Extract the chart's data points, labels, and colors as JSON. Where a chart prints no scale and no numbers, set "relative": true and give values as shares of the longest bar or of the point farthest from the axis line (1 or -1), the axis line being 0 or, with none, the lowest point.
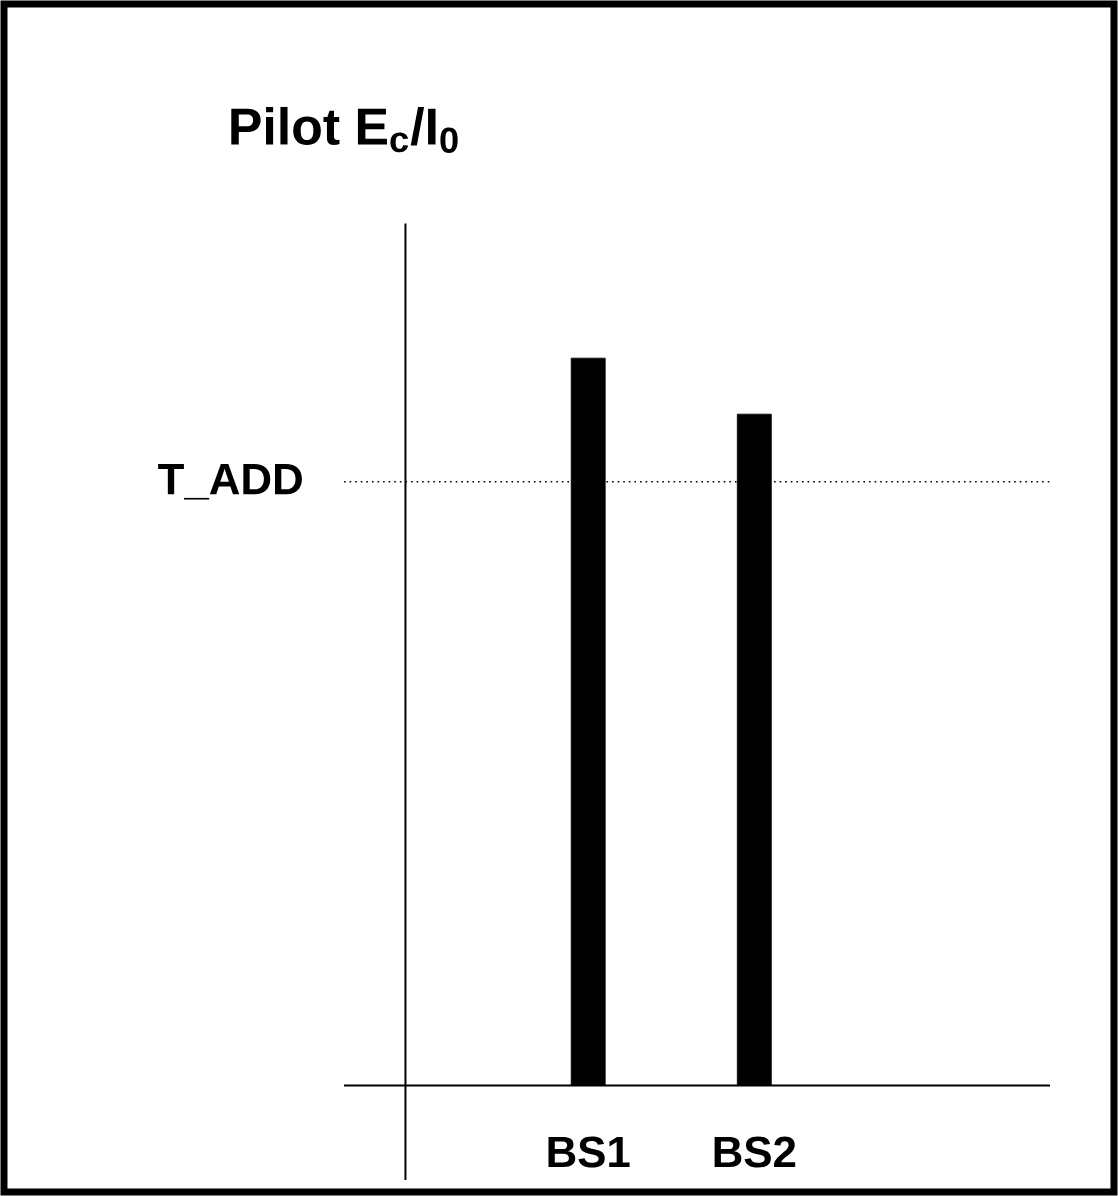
{
  "chart_data": {
    "type": "bar",
    "ylabel": "Pilot E$_{c}$/I$_{0}$",
    "relative": true,
    "categories": [
      "BS1",
      "BS2"
    ],
    "values": [
      1,
      0.923
    ],
    "color": "#000000",
    "ref_lines": [
      {
        "axis": "y",
        "value": 0.83,
        "label": "T_ADD",
        "line_style": "dotted",
        "color": "#000000"
      }
    ]
  }
}
